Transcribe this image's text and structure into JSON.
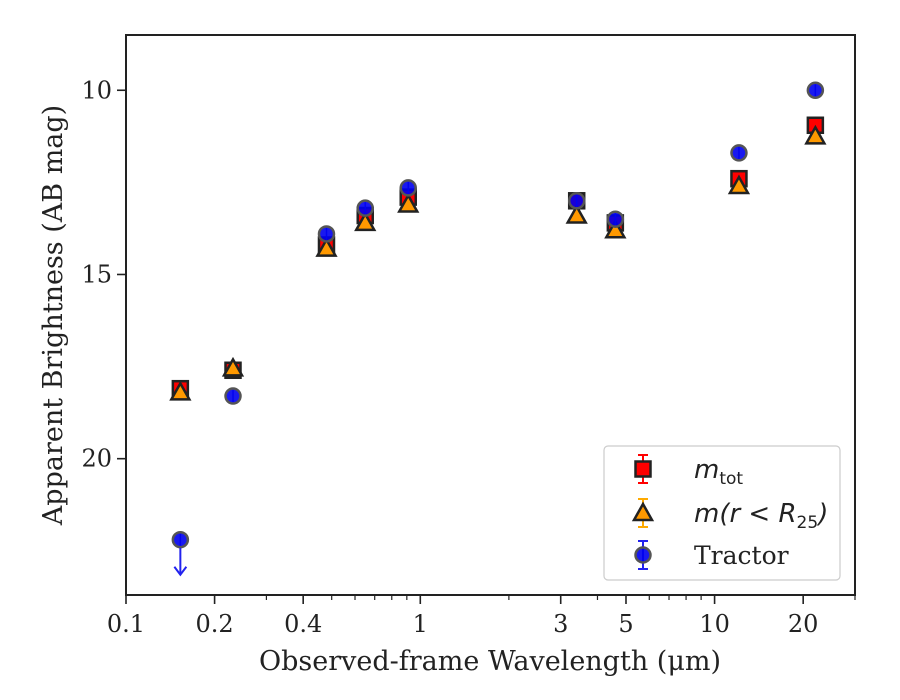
{
  "chart_data": {
    "type": "scatter",
    "xlabel": "Observed-frame Wavelength (μm)",
    "ylabel": "Apparent Brightness (AB mag)",
    "xscale": "log",
    "xlim": [
      0.1,
      30
    ],
    "ylim": [
      23.7,
      8.5
    ],
    "y_inverted": true,
    "x_ticks": [
      0.1,
      0.2,
      0.4,
      1,
      3,
      5,
      10,
      20
    ],
    "x_tick_labels": [
      "0.1",
      "0.2",
      "0.4",
      "1",
      "3",
      "5",
      "10",
      "20"
    ],
    "y_ticks": [
      10,
      15,
      20
    ],
    "y_tick_labels": [
      "10",
      "15",
      "20"
    ],
    "grid": false,
    "legend_position": "lower right",
    "series": [
      {
        "name_base": "m",
        "name_sub": "tot",
        "marker": "square",
        "color": "#ff0000",
        "edge": "#222222",
        "errcolor": "#ff0000",
        "points": [
          {
            "x": 0.153,
            "y": 18.1
          },
          {
            "x": 0.231,
            "y": 17.6
          },
          {
            "x": 0.48,
            "y": 14.2
          },
          {
            "x": 0.65,
            "y": 13.4
          },
          {
            "x": 0.91,
            "y": 12.9
          },
          {
            "x": 3.4,
            "y": 13.0
          },
          {
            "x": 4.6,
            "y": 13.6
          },
          {
            "x": 12.1,
            "y": 12.4
          },
          {
            "x": 22.0,
            "y": 10.95
          }
        ]
      },
      {
        "name_base": "m(r < R",
        "name_sub": "25",
        "name_end": ")",
        "marker": "triangle",
        "color": "#ff9900",
        "edge": "#222222",
        "errcolor": "#ffaa00",
        "points": [
          {
            "x": 0.153,
            "y": 18.2
          },
          {
            "x": 0.231,
            "y": 17.55
          },
          {
            "x": 0.48,
            "y": 14.3
          },
          {
            "x": 0.65,
            "y": 13.6
          },
          {
            "x": 0.91,
            "y": 13.1
          },
          {
            "x": 3.4,
            "y": 13.4
          },
          {
            "x": 4.6,
            "y": 13.8
          },
          {
            "x": 12.1,
            "y": 12.6
          },
          {
            "x": 22.0,
            "y": 11.25
          }
        ]
      },
      {
        "name": "Tractor",
        "marker": "circle",
        "color": "#0000ee",
        "edge": "#555555",
        "errcolor": "#2222ee",
        "points": [
          {
            "x": 0.153,
            "y": 22.2,
            "upper_limit": true
          },
          {
            "x": 0.231,
            "y": 18.3
          },
          {
            "x": 0.48,
            "y": 13.9
          },
          {
            "x": 0.65,
            "y": 13.2
          },
          {
            "x": 0.91,
            "y": 12.65
          },
          {
            "x": 3.4,
            "y": 13.0
          },
          {
            "x": 4.6,
            "y": 13.5
          },
          {
            "x": 12.1,
            "y": 11.7
          },
          {
            "x": 22.0,
            "y": 10.0
          }
        ]
      }
    ]
  }
}
